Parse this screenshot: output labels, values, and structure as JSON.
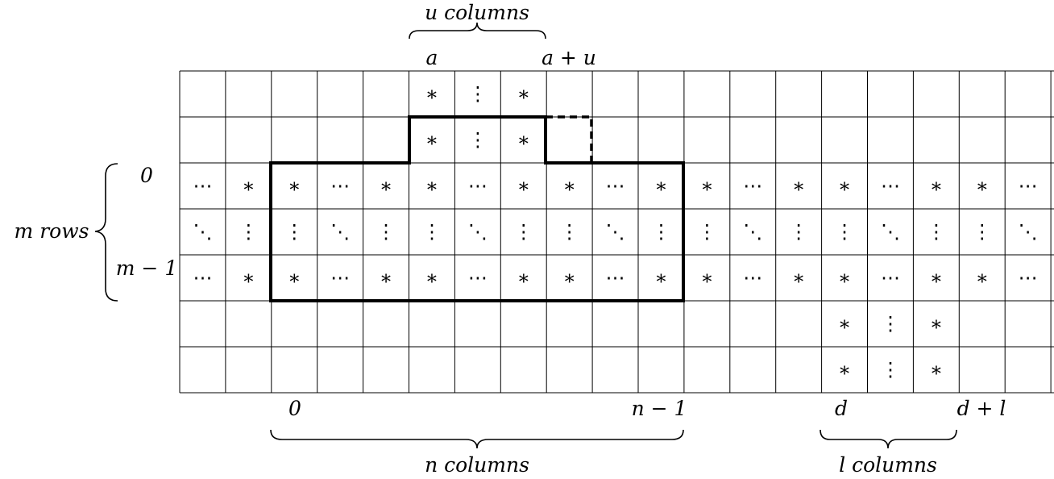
{
  "top_labels": {
    "brace_label": "u columns",
    "col_a": "a",
    "col_a_plus_u": "a + u"
  },
  "left_labels": {
    "brace_label": "m rows",
    "row_0": "0",
    "row_m_minus_1": "m − 1"
  },
  "bottom_labels": {
    "col_0": "0",
    "col_n_minus_1": "n − 1",
    "col_d": "d",
    "col_d_plus_l": "d + l",
    "n_brace_label": "n columns",
    "l_brace_label": "l columns"
  },
  "grid": {
    "row_count": 7,
    "col_count": 19,
    "cells": [
      [
        "",
        "",
        "",
        "",
        "",
        "∗",
        "⋮",
        "∗",
        "",
        "",
        "",
        "",
        "",
        "",
        "",
        "",
        "",
        "",
        ""
      ],
      [
        "",
        "",
        "",
        "",
        "",
        "∗",
        "⋮",
        "∗",
        "",
        "",
        "",
        "",
        "",
        "",
        "",
        "",
        "",
        "",
        ""
      ],
      [
        "⋯",
        "∗",
        "∗",
        "⋯",
        "∗",
        "∗",
        "⋯",
        "∗",
        "∗",
        "⋯",
        "∗",
        "∗",
        "⋯",
        "∗",
        "∗",
        "⋯",
        "∗",
        "∗",
        "⋯"
      ],
      [
        "⋱",
        "⋮",
        "⋮",
        "⋱",
        "⋮",
        "⋮",
        "⋱",
        "⋮",
        "⋮",
        "⋱",
        "⋮",
        "⋮",
        "⋱",
        "⋮",
        "⋮",
        "⋱",
        "⋮",
        "⋮",
        "⋱"
      ],
      [
        "⋯",
        "∗",
        "∗",
        "⋯",
        "∗",
        "∗",
        "⋯",
        "∗",
        "∗",
        "⋯",
        "∗",
        "∗",
        "⋯",
        "∗",
        "∗",
        "⋯",
        "∗",
        "∗",
        "⋯"
      ],
      [
        "",
        "",
        "",
        "",
        "",
        "",
        "",
        "",
        "",
        "",
        "",
        "",
        "",
        "",
        "∗",
        "⋮",
        "∗",
        "",
        ""
      ],
      [
        "",
        "",
        "",
        "",
        "",
        "",
        "",
        "",
        "",
        "",
        "",
        "",
        "",
        "",
        "∗",
        "⋮",
        "∗",
        "",
        ""
      ]
    ]
  }
}
